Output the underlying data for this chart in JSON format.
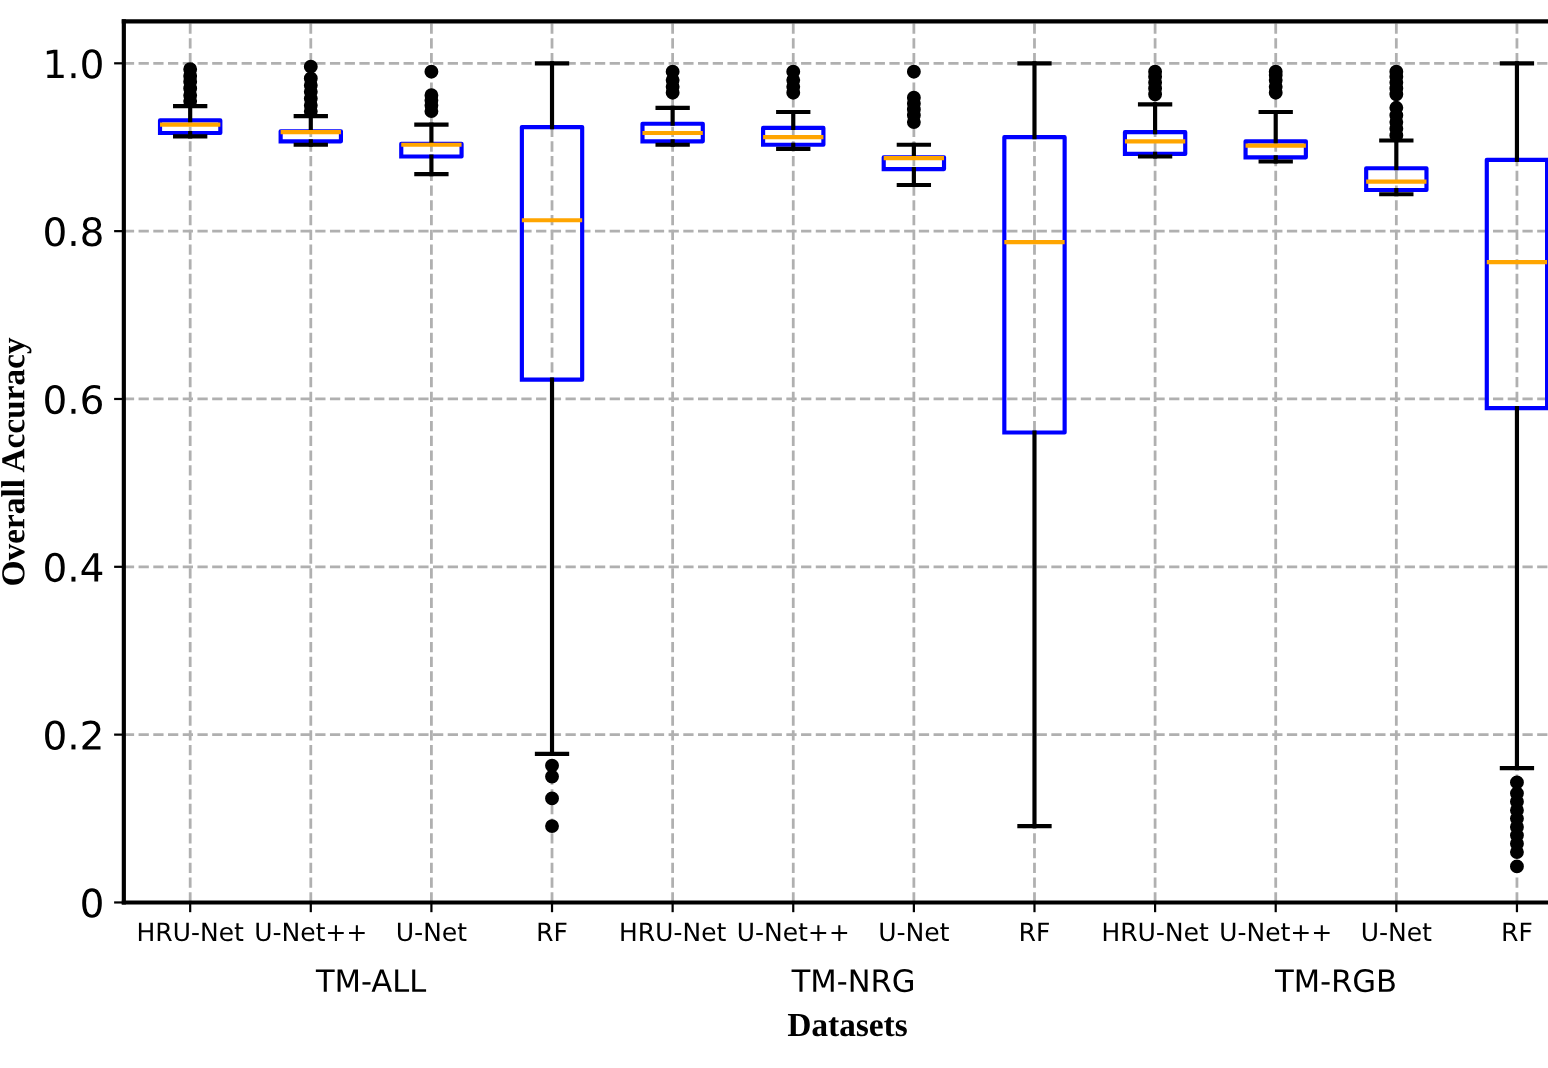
{
  "chart_data": {
    "type": "box",
    "xlabel": "Datasets",
    "ylabel": "Overall Accuracy",
    "categories": [
      "HRU-Net",
      "U-Net++",
      "U-Net",
      "RF",
      "HRU-Net",
      "U-Net++",
      "U-Net",
      "RF",
      "HRU-Net",
      "U-Net++",
      "U-Net",
      "RF"
    ],
    "annotations": [
      "TM-ALL",
      "TM-NRG",
      "TM-RGB"
    ],
    "ylim": [
      0,
      1.05
    ],
    "yticks": [
      0,
      {
        "value": 0.2,
        "label": "0.2"
      },
      {
        "value": 0.4,
        "label": "0.4"
      },
      {
        "value": 0.6,
        "label": "0.6"
      },
      {
        "value": 0.8,
        "label": "0.8"
      },
      {
        "value": 1.0,
        "label": "1.0"
      }
    ],
    "grid": true,
    "color": "#0000ff",
    "boxes": [
      {
        "low": 0.913,
        "q1": 0.917,
        "median": 0.927,
        "q3": 0.932,
        "high": 0.949,
        "outliers": [
          0.955,
          0.962,
          0.97,
          0.978,
          0.985,
          0.993
        ]
      },
      {
        "low": 0.903,
        "q1": 0.907,
        "median": 0.918,
        "q3": 0.919,
        "high": 0.937,
        "outliers": [
          0.943,
          0.95,
          0.958,
          0.966,
          0.974,
          0.982,
          0.996
        ]
      },
      {
        "low": 0.868,
        "q1": 0.889,
        "median": 0.903,
        "q3": 0.904,
        "high": 0.927,
        "outliers": [
          0.943,
          0.95,
          0.956,
          0.962,
          0.99
        ]
      },
      {
        "low": 0.177,
        "q1": 0.623,
        "median": 0.813,
        "q3": 0.924,
        "high": 1.0,
        "outliers": [
          0.163,
          0.15,
          0.124,
          0.091
        ]
      },
      {
        "low": 0.903,
        "q1": 0.907,
        "median": 0.917,
        "q3": 0.928,
        "high": 0.947,
        "outliers": [
          0.965,
          0.972,
          0.98,
          0.99
        ]
      },
      {
        "low": 0.898,
        "q1": 0.903,
        "median": 0.912,
        "q3": 0.923,
        "high": 0.942,
        "outliers": [
          0.965,
          0.972,
          0.98,
          0.99
        ]
      },
      {
        "low": 0.855,
        "q1": 0.874,
        "median": 0.887,
        "q3": 0.888,
        "high": 0.903,
        "outliers": [
          0.93,
          0.938,
          0.945,
          0.952,
          0.959,
          0.99
        ]
      },
      {
        "low": 0.091,
        "q1": 0.56,
        "median": 0.787,
        "q3": 0.912,
        "high": 1.0
      },
      {
        "low": 0.889,
        "q1": 0.892,
        "median": 0.907,
        "q3": 0.918,
        "high": 0.951,
        "outliers": [
          0.963,
          0.97,
          0.977,
          0.984,
          0.99
        ]
      },
      {
        "low": 0.883,
        "q1": 0.888,
        "median": 0.902,
        "q3": 0.907,
        "high": 0.942,
        "outliers": [
          0.965,
          0.972,
          0.98,
          0.986,
          0.99
        ]
      },
      {
        "low": 0.844,
        "q1": 0.849,
        "median": 0.859,
        "q3": 0.875,
        "high": 0.908,
        "outliers": [
          0.914,
          0.922,
          0.93,
          0.938,
          0.947,
          0.963,
          0.97,
          0.977,
          0.984,
          0.99
        ]
      },
      {
        "low": 0.16,
        "q1": 0.589,
        "median": 0.763,
        "q3": 0.885,
        "high": 1.0,
        "outliers": [
          0.143,
          0.13,
          0.12,
          0.11,
          0.1,
          0.09,
          0.08,
          0.07,
          0.06,
          0.043
        ]
      }
    ]
  }
}
